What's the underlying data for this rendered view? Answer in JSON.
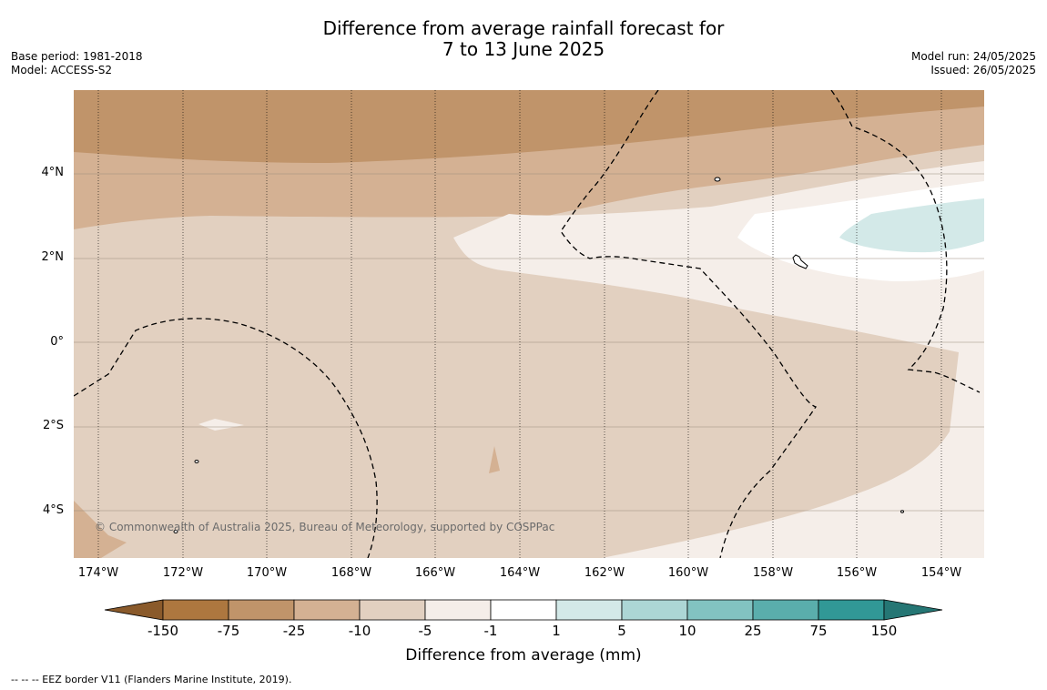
{
  "title": {
    "line1": "Difference from average rainfall forecast for",
    "line2": "7 to 13 June 2025"
  },
  "meta_left": {
    "base_period": "Base period: 1981-2018",
    "model": "Model: ACCESS-S2"
  },
  "meta_right": {
    "model_run": "Model run: 24/05/2025",
    "issued": "Issued: 26/05/2025"
  },
  "map": {
    "lat_labels": [
      "4°N",
      "2°N",
      "0°",
      "2°S",
      "4°S"
    ],
    "lon_labels": [
      "174°W",
      "172°W",
      "170°W",
      "168°W",
      "166°W",
      "164°W",
      "162°W",
      "160°W",
      "158°W",
      "156°W",
      "154°W"
    ],
    "copyright": "© Commonwealth of Australia 2025, Bureau of Meteorology, supported by COSPPac"
  },
  "colorbar": {
    "title": "Difference from average (mm)",
    "tick_labels": [
      "-150",
      "-75",
      "-25",
      "-10",
      "-5",
      "-1",
      "1",
      "5",
      "10",
      "25",
      "75",
      "150"
    ],
    "colors": [
      "#ad773f",
      "#c0946a",
      "#d4b193",
      "#e2d0c0",
      "#f5eee9",
      "#ffffff",
      "#d3e9e8",
      "#acd6d5",
      "#82c3c1",
      "#5aaeac",
      "#319896"
    ],
    "under_color": "#8a5a2b",
    "over_color": "#257674"
  },
  "footnote": "--  --  -- EEZ border V11 (Flanders Marine Institute, 2019)."
}
